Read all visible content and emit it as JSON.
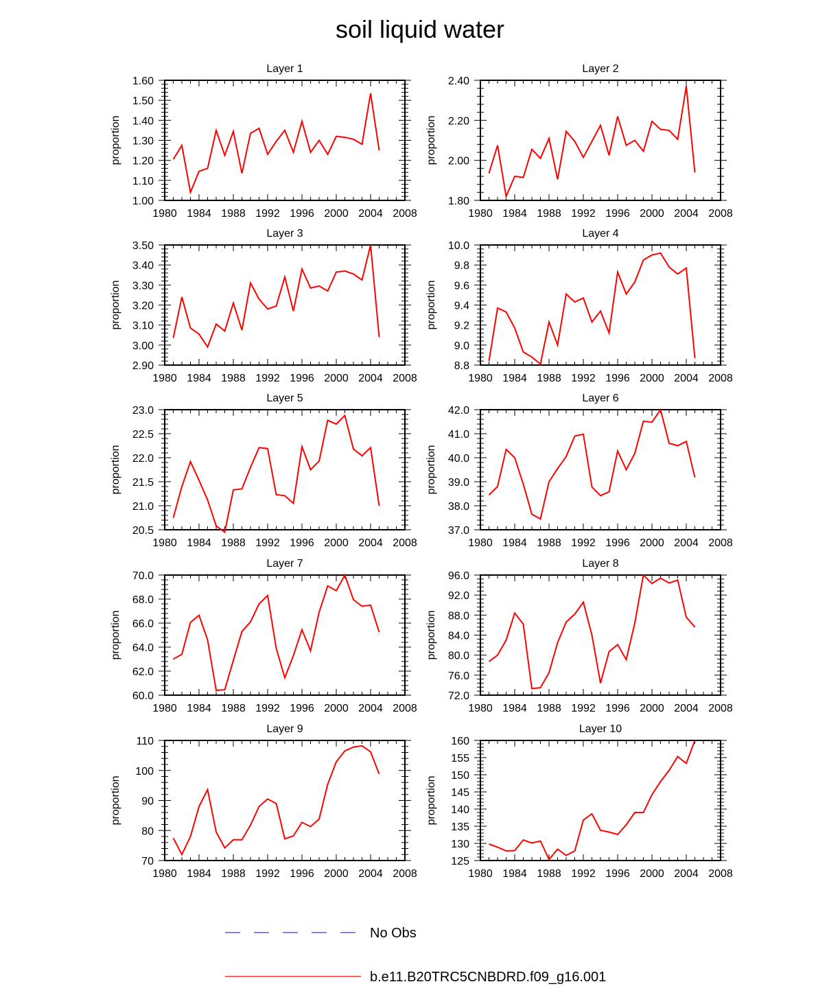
{
  "title": "soil liquid water",
  "legend": [
    {
      "label": "No Obs",
      "color": "#3c3cc8",
      "style": "dashed"
    },
    {
      "label": "b.e11.B20TRC5CNBDRD.f09_g16.001",
      "color": "#ff0000",
      "style": "solid"
    }
  ],
  "colors": {
    "series": "#ff0000",
    "obs": "#3c3cc8",
    "axis": "#000000"
  },
  "chart_data": [
    {
      "type": "line",
      "title": "Layer 1",
      "xlabel": "",
      "ylabel": "proportion",
      "xlim": [
        1980,
        2008
      ],
      "ylim": [
        1.0,
        1.6
      ],
      "xticks": [
        1980,
        1984,
        1988,
        1992,
        1996,
        2000,
        2004,
        2008
      ],
      "yticks": [
        1.0,
        1.1,
        1.2,
        1.3,
        1.4,
        1.5,
        1.6
      ],
      "ydec": 2,
      "x": [
        1981,
        1982,
        1983,
        1984,
        1985,
        1986,
        1987,
        1988,
        1989,
        1990,
        1991,
        1992,
        1993,
        1994,
        1995,
        1996,
        1997,
        1998,
        1999,
        2000,
        2001,
        2002,
        2003,
        2004,
        2005
      ],
      "series": [
        {
          "name": "b.e11.B20TRC5CNBDRD.f09_g16.001",
          "values": [
            1.205,
            1.275,
            1.04,
            1.145,
            1.16,
            1.35,
            1.225,
            1.345,
            1.135,
            1.335,
            1.36,
            1.23,
            1.295,
            1.35,
            1.24,
            1.395,
            1.24,
            1.3,
            1.23,
            1.32,
            1.315,
            1.305,
            1.28,
            1.535,
            1.25
          ]
        }
      ]
    },
    {
      "type": "line",
      "title": "Layer 2",
      "xlabel": "",
      "ylabel": "proportion",
      "xlim": [
        1980,
        2008
      ],
      "ylim": [
        1.8,
        2.4
      ],
      "xticks": [
        1980,
        1984,
        1988,
        1992,
        1996,
        2000,
        2004,
        2008
      ],
      "yticks": [
        1.8,
        2.0,
        2.2,
        2.4
      ],
      "ydec": 2,
      "x": [
        1981,
        1982,
        1983,
        1984,
        1985,
        1986,
        1987,
        1988,
        1989,
        1990,
        1991,
        1992,
        1993,
        1994,
        1995,
        1996,
        1997,
        1998,
        1999,
        2000,
        2001,
        2002,
        2003,
        2004,
        2005
      ],
      "series": [
        {
          "name": "b.e11.B20TRC5CNBDRD.f09_g16.001",
          "values": [
            1.935,
            2.075,
            1.82,
            1.92,
            1.915,
            2.055,
            2.01,
            2.11,
            1.905,
            2.145,
            2.095,
            2.015,
            2.095,
            2.175,
            2.025,
            2.22,
            2.075,
            2.1,
            2.045,
            2.195,
            2.155,
            2.15,
            2.105,
            2.37,
            1.94
          ]
        }
      ]
    },
    {
      "type": "line",
      "title": "Layer 3",
      "xlabel": "",
      "ylabel": "proportion",
      "xlim": [
        1980,
        2008
      ],
      "ylim": [
        2.9,
        3.5
      ],
      "xticks": [
        1980,
        1984,
        1988,
        1992,
        1996,
        2000,
        2004,
        2008
      ],
      "yticks": [
        2.9,
        3.0,
        3.1,
        3.2,
        3.3,
        3.4,
        3.5
      ],
      "ydec": 2,
      "x": [
        1981,
        1982,
        1983,
        1984,
        1985,
        1986,
        1987,
        1988,
        1989,
        1990,
        1991,
        1992,
        1993,
        1994,
        1995,
        1996,
        1997,
        1998,
        1999,
        2000,
        2001,
        2002,
        2003,
        2004,
        2005
      ],
      "series": [
        {
          "name": "b.e11.B20TRC5CNBDRD.f09_g16.001",
          "values": [
            3.035,
            3.24,
            3.085,
            3.055,
            2.99,
            3.105,
            3.07,
            3.21,
            3.075,
            3.31,
            3.23,
            3.18,
            3.195,
            3.34,
            3.17,
            3.38,
            3.285,
            3.295,
            3.27,
            3.365,
            3.37,
            3.355,
            3.325,
            3.5,
            3.04
          ]
        }
      ]
    },
    {
      "type": "line",
      "title": "Layer 4",
      "xlabel": "",
      "ylabel": "proportion",
      "xlim": [
        1980,
        2008
      ],
      "ylim": [
        8.8,
        10.0
      ],
      "xticks": [
        1980,
        1984,
        1988,
        1992,
        1996,
        2000,
        2004,
        2008
      ],
      "yticks": [
        8.8,
        9.0,
        9.2,
        9.4,
        9.6,
        9.8,
        10.0
      ],
      "ydec": 1,
      "x": [
        1981,
        1982,
        1983,
        1984,
        1985,
        1986,
        1987,
        1988,
        1989,
        1990,
        1991,
        1992,
        1993,
        1994,
        1995,
        1996,
        1997,
        1998,
        1999,
        2000,
        2001,
        2002,
        2003,
        2004,
        2005
      ],
      "series": [
        {
          "name": "b.e11.B20TRC5CNBDRD.f09_g16.001",
          "values": [
            8.84,
            9.37,
            9.33,
            9.17,
            8.93,
            8.88,
            8.81,
            9.23,
            9.0,
            9.51,
            9.43,
            9.47,
            9.23,
            9.34,
            9.12,
            9.73,
            9.51,
            9.63,
            9.85,
            9.9,
            9.92,
            9.78,
            9.71,
            9.77,
            8.87
          ]
        }
      ]
    },
    {
      "type": "line",
      "title": "Layer 5",
      "xlabel": "",
      "ylabel": "proportion",
      "xlim": [
        1980,
        2008
      ],
      "ylim": [
        20.5,
        23.0
      ],
      "xticks": [
        1980,
        1984,
        1988,
        1992,
        1996,
        2000,
        2004,
        2008
      ],
      "yticks": [
        20.5,
        21.0,
        21.5,
        22.0,
        22.5,
        23.0
      ],
      "ydec": 1,
      "x": [
        1981,
        1982,
        1983,
        1984,
        1985,
        1986,
        1987,
        1988,
        1989,
        1990,
        1991,
        1992,
        1993,
        1994,
        1995,
        1996,
        1997,
        1998,
        1999,
        2000,
        2001,
        2002,
        2003,
        2004,
        2005
      ],
      "series": [
        {
          "name": "b.e11.B20TRC5CNBDRD.f09_g16.001",
          "values": [
            20.75,
            21.4,
            21.92,
            21.53,
            21.12,
            20.58,
            20.45,
            21.33,
            21.35,
            21.8,
            22.21,
            22.19,
            21.23,
            21.21,
            21.05,
            22.23,
            21.75,
            21.93,
            22.78,
            22.7,
            22.88,
            22.18,
            22.04,
            22.21,
            21.0
          ]
        }
      ]
    },
    {
      "type": "line",
      "title": "Layer 6",
      "xlabel": "",
      "ylabel": "proportion",
      "xlim": [
        1980,
        2008
      ],
      "ylim": [
        37.0,
        42.0
      ],
      "xticks": [
        1980,
        1984,
        1988,
        1992,
        1996,
        2000,
        2004,
        2008
      ],
      "yticks": [
        37.0,
        38.0,
        39.0,
        40.0,
        41.0,
        42.0
      ],
      "ydec": 1,
      "x": [
        1981,
        1982,
        1983,
        1984,
        1985,
        1986,
        1987,
        1988,
        1989,
        1990,
        1991,
        1992,
        1993,
        1994,
        1995,
        1996,
        1997,
        1998,
        1999,
        2000,
        2001,
        2002,
        2003,
        2004,
        2005
      ],
      "series": [
        {
          "name": "b.e11.B20TRC5CNBDRD.f09_g16.001",
          "values": [
            38.45,
            38.8,
            40.35,
            40.0,
            38.9,
            37.65,
            37.45,
            39.0,
            39.55,
            40.05,
            40.9,
            40.98,
            38.78,
            38.42,
            38.58,
            40.28,
            39.5,
            40.18,
            41.52,
            41.48,
            42.0,
            40.6,
            40.5,
            40.68,
            39.18
          ]
        }
      ]
    },
    {
      "type": "line",
      "title": "Layer 7",
      "xlabel": "",
      "ylabel": "proportion",
      "xlim": [
        1980,
        2008
      ],
      "ylim": [
        60.0,
        70.0
      ],
      "xticks": [
        1980,
        1984,
        1988,
        1992,
        1996,
        2000,
        2004,
        2008
      ],
      "yticks": [
        60.0,
        62.0,
        64.0,
        66.0,
        68.0,
        70.0
      ],
      "ydec": 1,
      "x": [
        1981,
        1982,
        1983,
        1984,
        1985,
        1986,
        1987,
        1988,
        1989,
        1990,
        1991,
        1992,
        1993,
        1994,
        1995,
        1996,
        1997,
        1998,
        1999,
        2000,
        2001,
        2002,
        2003,
        2004,
        2005
      ],
      "series": [
        {
          "name": "b.e11.B20TRC5CNBDRD.f09_g16.001",
          "values": [
            63.0,
            63.4,
            66.05,
            66.65,
            64.6,
            60.4,
            60.45,
            62.9,
            65.3,
            66.1,
            67.6,
            68.3,
            63.9,
            61.45,
            63.3,
            65.45,
            63.7,
            66.9,
            69.1,
            68.7,
            70.0,
            67.95,
            67.4,
            67.5,
            65.25
          ]
        }
      ]
    },
    {
      "type": "line",
      "title": "Layer 8",
      "xlabel": "",
      "ylabel": "proportion",
      "xlim": [
        1980,
        2008
      ],
      "ylim": [
        72.0,
        96.0
      ],
      "xticks": [
        1980,
        1984,
        1988,
        1992,
        1996,
        2000,
        2004,
        2008
      ],
      "yticks": [
        72.0,
        76.0,
        80.0,
        84.0,
        88.0,
        92.0,
        96.0
      ],
      "ydec": 1,
      "x": [
        1981,
        1982,
        1983,
        1984,
        1985,
        1986,
        1987,
        1988,
        1989,
        1990,
        1991,
        1992,
        1993,
        1994,
        1995,
        1996,
        1997,
        1998,
        1999,
        2000,
        2001,
        2002,
        2003,
        2004,
        2005
      ],
      "series": [
        {
          "name": "b.e11.B20TRC5CNBDRD.f09_g16.001",
          "values": [
            78.7,
            80.0,
            83.0,
            88.4,
            86.2,
            73.3,
            73.5,
            76.5,
            82.5,
            86.6,
            88.2,
            90.6,
            84.0,
            74.4,
            80.7,
            82.1,
            79.1,
            86.4,
            96.0,
            94.3,
            95.4,
            94.4,
            95.0,
            87.6,
            85.6
          ]
        }
      ]
    },
    {
      "type": "line",
      "title": "Layer 9",
      "xlabel": "",
      "ylabel": "proportion",
      "xlim": [
        1980,
        2008
      ],
      "ylim": [
        70,
        110
      ],
      "xticks": [
        1980,
        1984,
        1988,
        1992,
        1996,
        2000,
        2004,
        2008
      ],
      "yticks": [
        70,
        80,
        90,
        100,
        110
      ],
      "ydec": 0,
      "x": [
        1981,
        1982,
        1983,
        1984,
        1985,
        1986,
        1987,
        1988,
        1989,
        1990,
        1991,
        1992,
        1993,
        1994,
        1995,
        1996,
        1997,
        1998,
        1999,
        2000,
        2001,
        2002,
        2003,
        2004,
        2005
      ],
      "series": [
        {
          "name": "b.e11.B20TRC5CNBDRD.f09_g16.001",
          "values": [
            77.5,
            72.0,
            78.0,
            88.0,
            93.6,
            79.5,
            74.2,
            76.9,
            76.9,
            81.8,
            88.0,
            90.5,
            89.0,
            77.2,
            78.2,
            82.7,
            81.3,
            83.8,
            95.4,
            102.9,
            106.5,
            107.8,
            108.2,
            106.2,
            98.8
          ]
        }
      ]
    },
    {
      "type": "line",
      "title": "Layer 10",
      "xlabel": "",
      "ylabel": "proportion",
      "xlim": [
        1980,
        2008
      ],
      "ylim": [
        125,
        160
      ],
      "xticks": [
        1980,
        1984,
        1988,
        1992,
        1996,
        2000,
        2004,
        2008
      ],
      "yticks": [
        125,
        130,
        135,
        140,
        145,
        150,
        155,
        160
      ],
      "ydec": 0,
      "x": [
        1981,
        1982,
        1983,
        1984,
        1985,
        1986,
        1987,
        1988,
        1989,
        1990,
        1991,
        1992,
        1993,
        1994,
        1995,
        1996,
        1997,
        1998,
        1999,
        2000,
        2001,
        2002,
        2003,
        2004,
        2005
      ],
      "series": [
        {
          "name": "b.e11.B20TRC5CNBDRD.f09_g16.001",
          "values": [
            129.8,
            128.9,
            127.8,
            127.9,
            131.0,
            130.1,
            130.7,
            125.3,
            128.3,
            126.5,
            127.8,
            136.8,
            138.6,
            133.8,
            133.3,
            132.6,
            135.4,
            139.0,
            139.0,
            144.2,
            148.0,
            151.3,
            155.3,
            153.3,
            160.0
          ]
        }
      ]
    }
  ]
}
